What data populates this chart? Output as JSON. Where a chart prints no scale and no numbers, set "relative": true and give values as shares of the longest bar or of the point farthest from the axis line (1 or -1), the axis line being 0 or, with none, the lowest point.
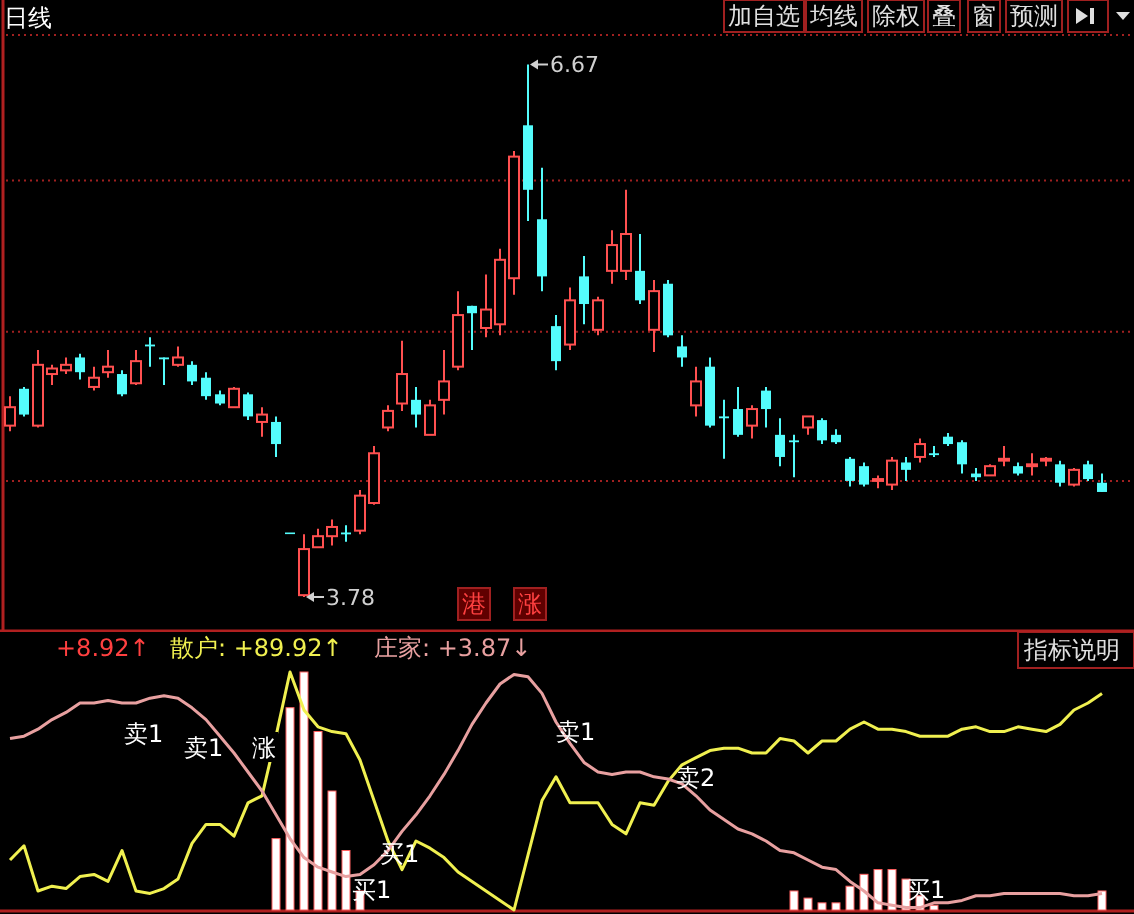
{
  "chart_data": [
    {
      "type": "candlestick",
      "categories": [
        null,
        null,
        null,
        null,
        null,
        null,
        null,
        null,
        null,
        null,
        null,
        null,
        null,
        null,
        null,
        null,
        null,
        null,
        null,
        null,
        null,
        null,
        null,
        null,
        null,
        null,
        null,
        null,
        null,
        null,
        null,
        null,
        null,
        null,
        null,
        null,
        null,
        null,
        null,
        null,
        null,
        null,
        null,
        null,
        null,
        null,
        null,
        null,
        null,
        null,
        null,
        null,
        null,
        null,
        null,
        null,
        null,
        null,
        null,
        null,
        null,
        null,
        null,
        null,
        null,
        null,
        null,
        null,
        null,
        null,
        null,
        null,
        null,
        null,
        null,
        null,
        null,
        null,
        null
      ],
      "ohlc": [
        [
          4.71,
          4.87,
          4.68,
          4.81
        ],
        [
          4.91,
          4.92,
          4.76,
          4.77
        ],
        [
          4.71,
          5.12,
          4.7,
          5.04
        ],
        [
          4.99,
          5.04,
          4.93,
          5.02
        ],
        [
          5.01,
          5.08,
          4.99,
          5.04
        ],
        [
          5.08,
          5.1,
          4.96,
          5.0
        ],
        [
          4.92,
          5.03,
          4.9,
          4.97
        ],
        [
          5.0,
          5.12,
          4.97,
          5.03
        ],
        [
          4.99,
          5.01,
          4.87,
          4.88
        ],
        [
          4.94,
          5.12,
          4.93,
          5.06
        ],
        [
          5.15,
          5.19,
          5.03,
          5.14
        ],
        [
          5.08,
          5.08,
          4.93,
          5.07
        ],
        [
          5.04,
          5.14,
          5.03,
          5.08
        ],
        [
          5.04,
          5.06,
          4.93,
          4.95
        ],
        [
          4.97,
          5.0,
          4.85,
          4.87
        ],
        [
          4.88,
          4.9,
          4.82,
          4.83
        ],
        [
          4.81,
          4.92,
          4.81,
          4.91
        ],
        [
          4.88,
          4.89,
          4.74,
          4.76
        ],
        [
          4.73,
          4.81,
          4.65,
          4.77
        ],
        [
          4.73,
          4.76,
          4.54,
          4.61
        ],
        [
          4.13,
          4.13,
          4.13,
          4.13
        ],
        [
          3.79,
          4.12,
          3.78,
          4.04
        ],
        [
          4.05,
          4.15,
          4.05,
          4.11
        ],
        [
          4.11,
          4.2,
          4.06,
          4.16
        ],
        [
          4.13,
          4.17,
          4.08,
          4.12
        ],
        [
          4.14,
          4.36,
          4.12,
          4.33
        ],
        [
          4.29,
          4.6,
          4.28,
          4.56
        ],
        [
          4.7,
          4.82,
          4.68,
          4.79
        ],
        [
          4.83,
          5.17,
          4.79,
          4.99
        ],
        [
          4.85,
          4.92,
          4.7,
          4.77
        ],
        [
          4.66,
          4.85,
          4.66,
          4.82
        ],
        [
          4.85,
          5.12,
          4.77,
          4.95
        ],
        [
          5.03,
          5.44,
          5.01,
          5.31
        ],
        [
          5.36,
          5.36,
          5.12,
          5.32
        ],
        [
          5.24,
          5.53,
          5.19,
          5.34
        ],
        [
          5.26,
          5.67,
          5.2,
          5.61
        ],
        [
          5.51,
          6.2,
          5.42,
          6.17
        ],
        [
          6.34,
          6.67,
          5.82,
          5.99
        ],
        [
          5.83,
          6.11,
          5.44,
          5.52
        ],
        [
          5.25,
          5.31,
          5.01,
          5.06
        ],
        [
          5.15,
          5.46,
          5.12,
          5.39
        ],
        [
          5.52,
          5.63,
          5.26,
          5.37
        ],
        [
          5.23,
          5.41,
          5.2,
          5.39
        ],
        [
          5.55,
          5.77,
          5.48,
          5.69
        ],
        [
          5.55,
          5.99,
          5.5,
          5.75
        ],
        [
          5.55,
          5.75,
          5.37,
          5.39
        ],
        [
          5.23,
          5.5,
          5.11,
          5.44
        ],
        [
          5.48,
          5.5,
          5.19,
          5.2
        ],
        [
          5.14,
          5.2,
          5.03,
          5.08
        ],
        [
          4.82,
          5.03,
          4.76,
          4.95
        ],
        [
          5.03,
          5.08,
          4.7,
          4.71
        ],
        [
          4.76,
          4.85,
          4.53,
          4.75
        ],
        [
          4.8,
          4.92,
          4.65,
          4.66
        ],
        [
          4.71,
          4.82,
          4.64,
          4.8
        ],
        [
          4.9,
          4.92,
          4.7,
          4.8
        ],
        [
          4.66,
          4.75,
          4.49,
          4.54
        ],
        [
          4.63,
          4.66,
          4.43,
          4.62
        ],
        [
          4.7,
          4.76,
          4.66,
          4.76
        ],
        [
          4.74,
          4.75,
          4.61,
          4.63
        ],
        [
          4.66,
          4.69,
          4.61,
          4.62
        ],
        [
          4.53,
          4.54,
          4.38,
          4.41
        ],
        [
          4.49,
          4.51,
          4.38,
          4.39
        ],
        [
          4.41,
          4.44,
          4.37,
          4.42
        ],
        [
          4.39,
          4.54,
          4.36,
          4.52
        ],
        [
          4.51,
          4.54,
          4.41,
          4.47
        ],
        [
          4.54,
          4.64,
          4.51,
          4.61
        ],
        [
          4.56,
          4.6,
          4.54,
          4.55
        ],
        [
          4.65,
          4.67,
          4.6,
          4.61
        ],
        [
          4.62,
          4.63,
          4.45,
          4.5
        ],
        [
          4.45,
          4.48,
          4.41,
          4.43
        ],
        [
          4.44,
          4.5,
          4.44,
          4.49
        ],
        [
          4.52,
          4.6,
          4.49,
          4.53
        ],
        [
          4.49,
          4.51,
          4.44,
          4.45
        ],
        [
          4.49,
          4.56,
          4.44,
          4.5
        ],
        [
          4.52,
          4.54,
          4.49,
          4.53
        ],
        [
          4.5,
          4.52,
          4.38,
          4.4
        ],
        [
          4.39,
          4.48,
          4.38,
          4.47
        ],
        [
          4.5,
          4.52,
          4.41,
          4.42
        ],
        [
          4.4,
          4.45,
          4.35,
          4.35
        ]
      ],
      "colors": [
        "#ff5050",
        "#54fcfc",
        "#ff5050",
        "#ff5050",
        "#ff5050",
        "#54fcfc",
        "#ff5050",
        "#ff5050",
        "#54fcfc",
        "#ff5050",
        "#54fcfc",
        "#54fcfc",
        "#ff5050",
        "#54fcfc",
        "#54fcfc",
        "#54fcfc",
        "#ff5050",
        "#54fcfc",
        "#ff5050",
        "#54fcfc",
        "#54fcfc",
        "#ff5050",
        "#ff5050",
        "#ff5050",
        "#54fcfc",
        "#ff5050",
        "#ff5050",
        "#ff5050",
        "#ff5050",
        "#54fcfc",
        "#ff5050",
        "#ff5050",
        "#ff5050",
        "#54fcfc",
        "#ff5050",
        "#ff5050",
        "#ff5050",
        "#54fcfc",
        "#54fcfc",
        "#54fcfc",
        "#ff5050",
        "#54fcfc",
        "#ff5050",
        "#ff5050",
        "#ff5050",
        "#54fcfc",
        "#ff5050",
        "#54fcfc",
        "#54fcfc",
        "#ff5050",
        "#54fcfc",
        "#54fcfc",
        "#54fcfc",
        "#ff5050",
        "#54fcfc",
        "#54fcfc",
        "#54fcfc",
        "#ff5050",
        "#54fcfc",
        "#54fcfc",
        "#54fcfc",
        "#54fcfc",
        "#ff5050",
        "#ff5050",
        "#54fcfc",
        "#ff5050",
        "#54fcfc",
        "#54fcfc",
        "#54fcfc",
        "#54fcfc",
        "#ff5050",
        "#ff5050",
        "#54fcfc",
        "#ff5050",
        "#ff5050",
        "#54fcfc",
        "#ff5050",
        "#54fcfc",
        "#54fcfc"
      ],
      "ylim": [
        3.59,
        7.02
      ],
      "yticks": [
        {
          "value": 6.83,
          "label": null
        },
        {
          "value": 6.04,
          "label": null
        },
        {
          "value": 5.22,
          "label": null
        },
        {
          "value": 4.41,
          "label": null
        }
      ],
      "grid": "y",
      "annotations": [
        "6.67",
        "3.78",
        "日线",
        "港",
        "涨",
        "加自选",
        "均线",
        "除权",
        "叠",
        "窗",
        "预测"
      ]
    },
    {
      "type": "line",
      "relative": true,
      "categories": [
        null,
        null,
        null,
        null,
        null,
        null,
        null,
        null,
        null,
        null,
        null,
        null,
        null,
        null,
        null,
        null,
        null,
        null,
        null,
        null,
        null,
        null,
        null,
        null,
        null,
        null,
        null,
        null,
        null,
        null,
        null,
        null,
        null,
        null,
        null,
        null,
        null,
        null,
        null,
        null,
        null,
        null,
        null,
        null,
        null,
        null,
        null,
        null,
        null,
        null,
        null,
        null,
        null,
        null,
        null,
        null,
        null,
        null,
        null,
        null,
        null,
        null,
        null,
        null,
        null,
        null,
        null,
        null,
        null,
        null,
        null,
        null,
        null,
        null,
        null,
        null,
        null,
        null,
        null
      ],
      "series": [
        {
          "type": "bar",
          "color": "#ffffff",
          "values": [
            null,
            null,
            null,
            null,
            null,
            null,
            null,
            null,
            null,
            null,
            null,
            null,
            null,
            null,
            null,
            null,
            null,
            null,
            null,
            0.3,
            0.85,
            1.0,
            0.75,
            0.5,
            0.25,
            0.08,
            null,
            null,
            null,
            null,
            null,
            null,
            null,
            null,
            null,
            null,
            null,
            null,
            null,
            null,
            null,
            null,
            null,
            null,
            null,
            null,
            null,
            null,
            null,
            null,
            null,
            null,
            null,
            null,
            null,
            null,
            0.08,
            0.05,
            0.03,
            0.03,
            0.1,
            0.15,
            0.17,
            0.17,
            0.13,
            0.06,
            0.02,
            null,
            null,
            null,
            null,
            null,
            null,
            null,
            null,
            null,
            null,
            null,
            0.08
          ]
        },
        {
          "type": "line",
          "color": "#f0f050",
          "values": [
            0.21,
            0.27,
            0.08,
            0.1,
            0.09,
            0.14,
            0.15,
            0.12,
            0.25,
            0.08,
            0.07,
            0.09,
            0.13,
            0.28,
            0.36,
            0.36,
            0.31,
            0.45,
            0.48,
            0.73,
            1.0,
            0.84,
            0.77,
            0.75,
            0.74,
            0.63,
            0.46,
            0.29,
            0.17,
            0.29,
            0.26,
            0.22,
            0.16,
            0.12,
            0.08,
            0.04,
            0.0,
            0.23,
            0.46,
            0.56,
            0.45,
            0.45,
            0.45,
            0.36,
            0.32,
            0.45,
            0.44,
            0.54,
            0.61,
            0.64,
            0.67,
            0.68,
            0.68,
            0.66,
            0.66,
            0.72,
            0.71,
            0.66,
            0.71,
            0.71,
            0.76,
            0.79,
            0.76,
            0.76,
            0.75,
            0.73,
            0.73,
            0.73,
            0.76,
            0.77,
            0.75,
            0.75,
            0.77,
            0.76,
            0.75,
            0.78,
            0.84,
            0.87,
            0.91
          ]
        },
        {
          "type": "line",
          "color": "#e8a0a0",
          "values": [
            0.72,
            0.73,
            0.76,
            0.8,
            0.83,
            0.87,
            0.87,
            0.88,
            0.87,
            0.87,
            0.89,
            0.9,
            0.89,
            0.85,
            0.8,
            0.73,
            0.66,
            0.58,
            0.5,
            0.4,
            0.3,
            0.22,
            0.18,
            0.16,
            0.14,
            0.15,
            0.19,
            0.25,
            0.33,
            0.4,
            0.48,
            0.57,
            0.67,
            0.78,
            0.87,
            0.95,
            0.99,
            0.98,
            0.91,
            0.79,
            0.7,
            0.62,
            0.58,
            0.57,
            0.58,
            0.58,
            0.56,
            0.55,
            0.53,
            0.48,
            0.42,
            0.38,
            0.34,
            0.32,
            0.29,
            0.25,
            0.24,
            0.21,
            0.18,
            0.17,
            0.12,
            0.08,
            0.03,
            0.02,
            0.01,
            0.01,
            0.03,
            0.03,
            0.04,
            0.06,
            0.06,
            0.07,
            0.07,
            0.07,
            0.07,
            0.07,
            0.06,
            0.06,
            0.07
          ]
        }
      ],
      "annotations": [
        "+8.92↑",
        "散户: +89.92↑",
        "庄家: +3.87↓",
        "卖1",
        "卖1",
        "涨",
        "买1",
        "买1",
        "卖1",
        "卖2",
        "买1",
        "指标说明"
      ]
    }
  ]
}
